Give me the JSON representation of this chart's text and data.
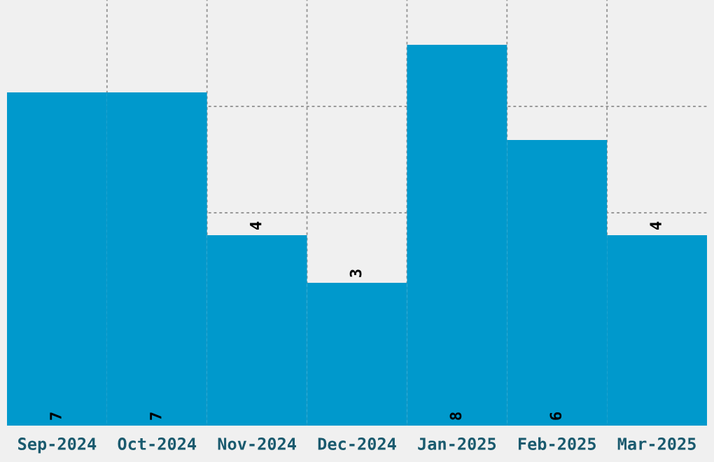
{
  "chart_data": {
    "type": "bar",
    "categories": [
      "Sep-2024",
      "Oct-2024",
      "Nov-2024",
      "Dec-2024",
      "Jan-2025",
      "Feb-2025",
      "Mar-2025"
    ],
    "values": [
      7,
      7,
      4,
      3,
      8,
      6,
      4
    ],
    "color": "#0099cc",
    "data_labels": true,
    "grid": true,
    "ylim": [
      0,
      8.94
    ],
    "yticks": [
      {
        "value": 2.235,
        "label": null
      },
      {
        "value": 4.47,
        "label": null
      },
      {
        "value": 6.705,
        "label": null
      }
    ],
    "tick_labels": "x"
  }
}
